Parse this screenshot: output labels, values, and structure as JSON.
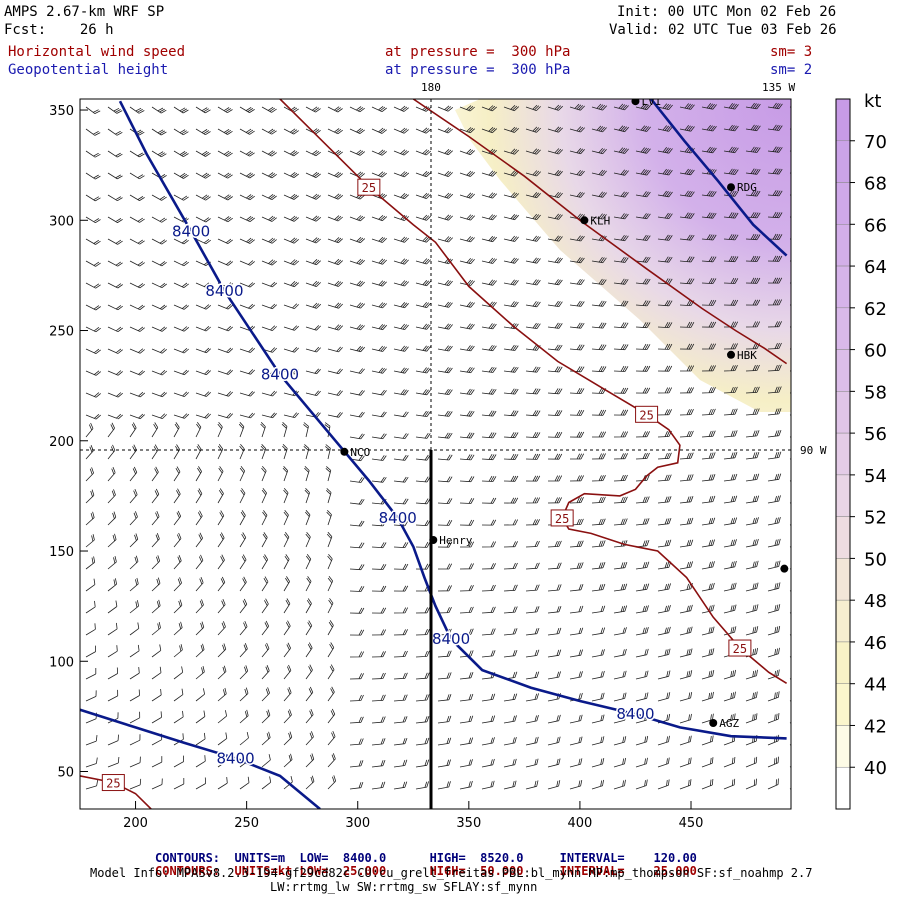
{
  "header": {
    "model": "AMPS 2.67-km WRF SP",
    "fcst": "Fcst:    26 h",
    "init": "Init: 00 UTC Mon 02 Feb 26",
    "valid": "Valid: 02 UTC Tue 03 Feb 26",
    "field1_name": "Horizontal wind speed",
    "field1_level": "at pressure =  300 hPa",
    "field1_sm": "sm= 3",
    "field2_name": "Geopotential height",
    "field2_level": "at pressure =  300 hPa",
    "field2_sm": "sm= 2"
  },
  "map_labels": {
    "lon_180": "180",
    "lon_135w": "135 W",
    "lon_90w": "90 W"
  },
  "stations": [
    {
      "name": "LVI",
      "x": 425,
      "y": 354
    },
    {
      "name": "RDG",
      "x": 468,
      "y": 315
    },
    {
      "name": "KLH",
      "x": 402,
      "y": 300
    },
    {
      "name": "HBK",
      "x": 468,
      "y": 239
    },
    {
      "name": "NCO",
      "x": 294,
      "y": 195
    },
    {
      "name": "Henry",
      "x": 334,
      "y": 155
    },
    {
      "name": "AGZ",
      "x": 460,
      "y": 72
    },
    {
      "name": "",
      "x": 492,
      "y": 142
    }
  ],
  "colorbar": {
    "unit": "kt",
    "labels": [
      "70",
      "68",
      "66",
      "64",
      "62",
      "60",
      "58",
      "56",
      "54",
      "52",
      "50",
      "48",
      "46",
      "44",
      "42",
      "40"
    ]
  },
  "chart_data": {
    "type": "contour",
    "title": "AMPS 2.67-km WRF SP 300 hPa Horizontal wind speed and Geopotential height",
    "x_ticks": [
      200,
      250,
      300,
      350,
      400,
      450
    ],
    "y_ticks": [
      50,
      100,
      150,
      200,
      250,
      300,
      350
    ],
    "xlim": [
      175,
      495
    ],
    "ylim": [
      33,
      355
    ],
    "height_contour_label": "8400",
    "speed_contour_label": "25",
    "height_contours": [
      {
        "value": 8400,
        "points": [
          [
            193,
            354
          ],
          [
            205,
            330
          ],
          [
            225,
            295
          ],
          [
            240,
            268
          ],
          [
            265,
            230
          ],
          [
            290,
            200
          ],
          [
            305,
            182
          ],
          [
            318,
            165
          ],
          [
            325,
            152
          ],
          [
            330,
            138
          ],
          [
            335,
            125
          ],
          [
            342,
            110
          ],
          [
            356,
            96
          ],
          [
            378,
            88
          ],
          [
            400,
            82
          ],
          [
            425,
            76
          ],
          [
            445,
            70
          ],
          [
            468,
            66
          ],
          [
            493,
            65
          ]
        ]
      },
      {
        "value": 8400,
        "points": [
          [
            175,
            78
          ],
          [
            200,
            70
          ],
          [
            222,
            63
          ],
          [
            245,
            56
          ],
          [
            265,
            48
          ],
          [
            283,
            33
          ]
        ]
      },
      {
        "value": 8520,
        "points": [
          [
            432,
            355
          ],
          [
            447,
            336
          ],
          [
            462,
            318
          ],
          [
            478,
            298
          ],
          [
            493,
            284
          ]
        ]
      }
    ],
    "speed_contours": [
      {
        "value": 25,
        "points": [
          [
            265,
            355
          ],
          [
            285,
            335
          ],
          [
            305,
            315
          ],
          [
            325,
            298
          ],
          [
            335,
            290
          ],
          [
            350,
            270
          ],
          [
            370,
            252
          ],
          [
            390,
            236
          ],
          [
            410,
            224
          ],
          [
            430,
            212
          ],
          [
            440,
            205
          ],
          [
            445,
            198
          ],
          [
            444,
            190
          ],
          [
            435,
            188
          ],
          [
            430,
            184
          ],
          [
            425,
            178
          ],
          [
            418,
            175
          ],
          [
            402,
            176
          ],
          [
            395,
            172
          ],
          [
            392,
            165
          ],
          [
            395,
            160
          ],
          [
            405,
            158
          ],
          [
            420,
            153
          ],
          [
            435,
            150
          ],
          [
            448,
            138
          ],
          [
            460,
            120
          ],
          [
            472,
            106
          ],
          [
            485,
            95
          ],
          [
            493,
            90
          ]
        ]
      },
      {
        "value": 50,
        "points": [
          [
            325,
            355
          ],
          [
            350,
            338
          ],
          [
            375,
            320
          ],
          [
            400,
            300
          ],
          [
            430,
            278
          ],
          [
            455,
            260
          ],
          [
            470,
            250
          ],
          [
            483,
            242
          ],
          [
            493,
            235
          ]
        ]
      },
      {
        "value": 25,
        "points": [
          [
            175,
            48
          ],
          [
            190,
            45
          ],
          [
            200,
            40
          ],
          [
            207,
            33
          ]
        ]
      }
    ],
    "speed_shading": {
      "unit": "kt",
      "min": 40,
      "max": 70,
      "interval": 2,
      "max_region": "northeast corner",
      "max_value": 70
    },
    "annotations": {
      "contours_line1": {
        "label": "CONTOURS:",
        "units": "UNITS=m",
        "low": "LOW=  8400.0",
        "high": "HIGH=  8520.0",
        "interval": "INTERVAL=    120.00"
      },
      "contours_line2": {
        "label": "CONTOURS:",
        "units": "UNITS=kt",
        "low": "LOW=  25.000",
        "high": "HIGH=  50.000",
        "interval": "INTERVAL=    25.000"
      }
    }
  },
  "footer": {
    "model_info": "Model Info: MPASv8.2.3-194-gf29cd82c CU:cu_grell_freitas PBL:bl_mynn MP:mp_thompson SF:sf_noahmp 2.7",
    "model_info2": "LW:rrtmg_lw SW:rrtmg_sw SFLAY:sf_mynn"
  },
  "colors": {
    "height_line": "#0a1a8a",
    "speed_line": "#8a1010",
    "barb": "#000000"
  }
}
